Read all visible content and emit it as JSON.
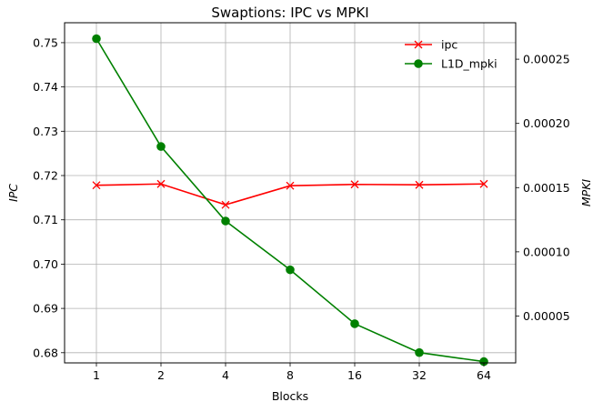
{
  "chart_data": {
    "type": "line",
    "title": "Swaptions: IPC vs MPKI",
    "xlabel": "Blocks",
    "categories": [
      "1",
      "2",
      "4",
      "8",
      "16",
      "32",
      "64"
    ],
    "y_left": {
      "label": "IPC",
      "ylim": [
        0.6777,
        0.7545
      ],
      "ticks": [
        0.68,
        0.69,
        0.7,
        0.71,
        0.72,
        0.73,
        0.74,
        0.75
      ],
      "tick_labels": [
        "0.68",
        "0.69",
        "0.70",
        "0.71",
        "0.72",
        "0.73",
        "0.74",
        "0.75"
      ]
    },
    "y_right": {
      "label": "MPKI",
      "label_style": "italic",
      "ylim": [
        1.35e-05,
        0.0002784
      ],
      "ticks": [
        5e-05,
        0.0001,
        0.00015,
        0.0002,
        0.00025
      ],
      "tick_labels": [
        "0.00005",
        "0.00010",
        "0.00015",
        "0.00020",
        "0.00025"
      ]
    },
    "series": [
      {
        "name": "ipc",
        "axis": "left",
        "color": "#ff0000",
        "marker": "x",
        "values": [
          0.7178,
          0.7181,
          0.7134,
          0.7177,
          0.718,
          0.7179,
          0.7181
        ]
      },
      {
        "name": "L1D_mpki",
        "axis": "right",
        "color": "#008000",
        "marker": "circle",
        "values": [
          0.000266,
          0.000182,
          0.000124,
          8.6e-05,
          4.4e-05,
          2.15e-05,
          1.45e-05
        ]
      }
    ],
    "grid": true,
    "legend_position": "top-right"
  }
}
